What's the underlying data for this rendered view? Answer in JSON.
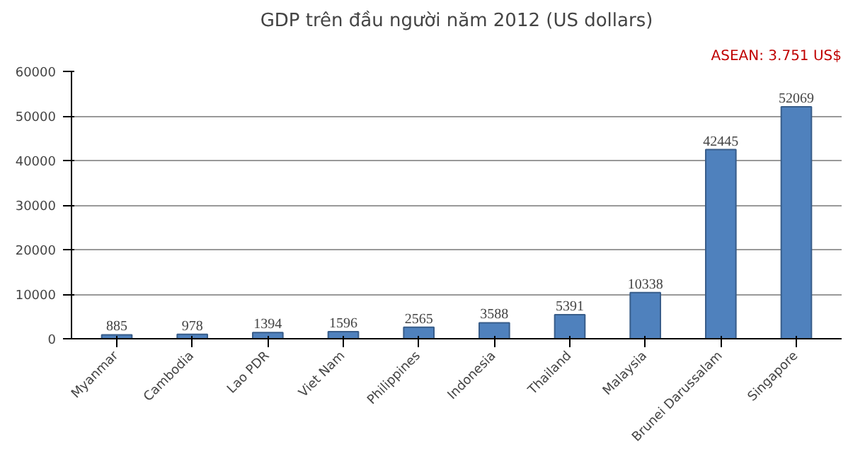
{
  "chart_data": {
    "type": "bar",
    "title": "GDP trên đầu người năm 2012 (US dollars)",
    "annotations": [
      "ASEAN: 3.751 US$"
    ],
    "categories": [
      "Myanmar",
      "Cambodia",
      "Lao PDR",
      "Viet Nam",
      "Philippines",
      "Indonesia",
      "Thailand",
      "Malaysia",
      "Brunei Darussalam",
      "Singapore"
    ],
    "values": [
      885,
      978,
      1394,
      1596,
      2565,
      3588,
      5391,
      10338,
      42445,
      52069
    ],
    "color": "#4f81bd",
    "data_labels": true,
    "ylim": [
      0,
      60000
    ],
    "yticks": [
      0,
      10000,
      20000,
      30000,
      40000,
      50000,
      60000
    ],
    "grid": "y"
  }
}
